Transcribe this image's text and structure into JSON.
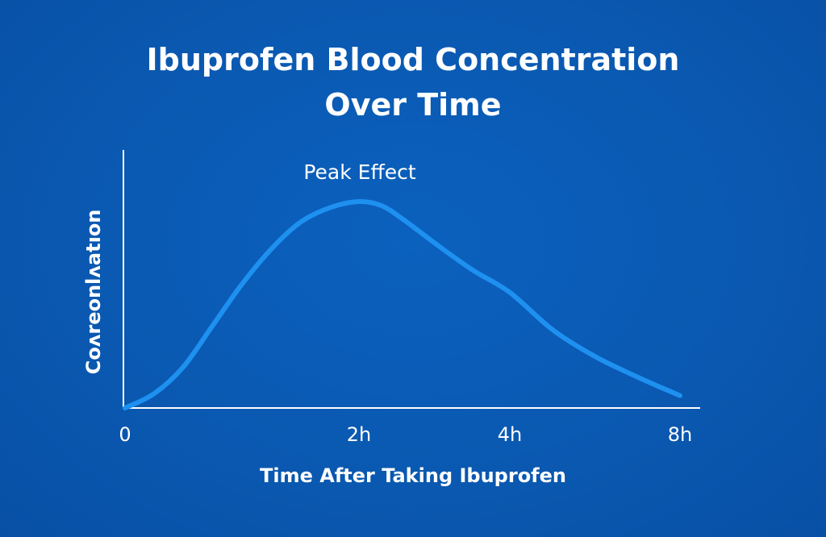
{
  "chart_data": {
    "type": "line",
    "title_line1": "Ibuprofen Blood Concentration",
    "title_line2": "Over Time",
    "xlabel": "Time After Taking Ibuprofen",
    "ylabel": "Coʌreonlʌatıon",
    "x_tick_labels": [
      "0",
      "2h",
      "4h",
      "8h"
    ],
    "annotations": [
      {
        "text": "Peak Effect",
        "x": 2
      }
    ],
    "series": [
      {
        "points": [
          {
            "x": 0,
            "y": 0
          },
          {
            "x": 0.25,
            "y": 0.07
          },
          {
            "x": 0.5,
            "y": 0.2
          },
          {
            "x": 0.75,
            "y": 0.4
          },
          {
            "x": 1.0,
            "y": 0.6
          },
          {
            "x": 1.25,
            "y": 0.77
          },
          {
            "x": 1.5,
            "y": 0.9
          },
          {
            "x": 1.75,
            "y": 0.97
          },
          {
            "x": 2.0,
            "y": 1.0
          },
          {
            "x": 2.3,
            "y": 0.98
          },
          {
            "x": 2.6,
            "y": 0.91
          },
          {
            "x": 3.0,
            "y": 0.8
          },
          {
            "x": 3.5,
            "y": 0.67
          },
          {
            "x": 4.0,
            "y": 0.56
          },
          {
            "x": 5.0,
            "y": 0.38
          },
          {
            "x": 6.0,
            "y": 0.25
          },
          {
            "x": 7.0,
            "y": 0.15
          },
          {
            "x": 8.0,
            "y": 0.06
          }
        ]
      }
    ],
    "x_range": [
      0,
      8
    ],
    "y_range": [
      0,
      1
    ],
    "grid": false,
    "colors": {
      "background": "#0a5ab3",
      "line": "#1e90f0",
      "axis": "#ffffff",
      "text": "#ffffff"
    }
  }
}
